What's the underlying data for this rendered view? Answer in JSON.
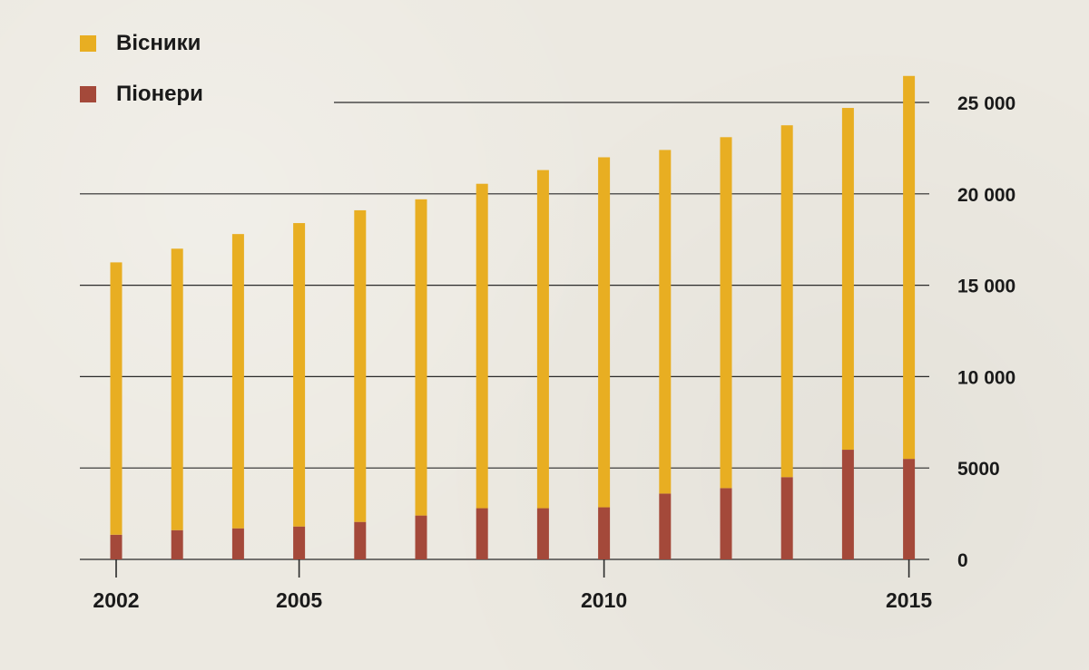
{
  "chart_data": {
    "type": "bar",
    "stacked": true,
    "title": "",
    "xlabel": "",
    "ylabel": "",
    "categories": [
      "2002",
      "2003",
      "2004",
      "2005",
      "2006",
      "2007",
      "2008",
      "2009",
      "2010",
      "2011",
      "2012",
      "2013",
      "2014",
      "2015"
    ],
    "series": [
      {
        "name": "Піонери",
        "color": "#a4493a",
        "values": [
          1350,
          1600,
          1700,
          1800,
          2050,
          2400,
          2800,
          2800,
          2850,
          3600,
          3900,
          4500,
          6000,
          5500
        ]
      },
      {
        "name": "Вісники",
        "color": "#e8ae22",
        "values": [
          14900,
          15400,
          16100,
          16600,
          17050,
          17300,
          17750,
          18500,
          19150,
          18800,
          19200,
          19250,
          18700,
          20950
        ]
      }
    ],
    "totals": [
      16250,
      17000,
      17800,
      18400,
      19100,
      19700,
      20550,
      21300,
      22000,
      22400,
      23100,
      23750,
      24700,
      26450
    ],
    "ylim": [
      0,
      25000
    ],
    "y_ticks": [
      0,
      5000,
      10000,
      15000,
      20000,
      25000
    ],
    "y_tick_labels": [
      "0",
      "5000",
      "10 000",
      "15 000",
      "20 000",
      "25 000"
    ],
    "x_tick_labels": [
      "2002",
      "2005",
      "2010",
      "2015"
    ],
    "grid": true,
    "y_axis_side": "right",
    "legend": {
      "position": "top-left",
      "entries": [
        "Вісники",
        "Піонери"
      ]
    }
  },
  "legend": {
    "items": [
      {
        "label": "Вісники",
        "color": "#e8ae22"
      },
      {
        "label": "Піонери",
        "color": "#a4493a"
      }
    ]
  }
}
